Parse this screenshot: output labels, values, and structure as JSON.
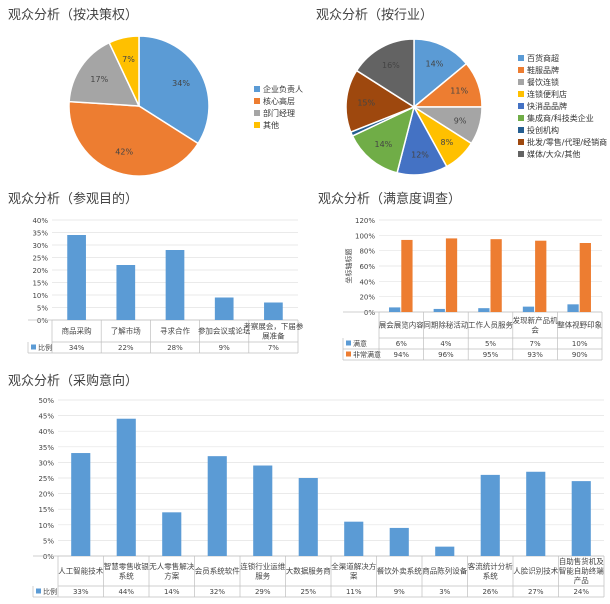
{
  "colors": {
    "blue": "#5B9BD5",
    "orange": "#ED7D31",
    "gray": "#A5A5A5",
    "yellow": "#FFC000",
    "darkblue": "#4472C4",
    "green": "#70AD47",
    "navy": "#255E91",
    "brown": "#9E480E",
    "darkgray": "#636363"
  },
  "charts": {
    "decision": {
      "title": "观众分析（按决策权）"
    },
    "industry": {
      "title": "观众分析（按行业）"
    },
    "purpose": {
      "title": "观众分析（参观目的）"
    },
    "satisfaction": {
      "title": "观众分析（满意度调查）",
      "ylabel": "坐标轴标题"
    },
    "procurement": {
      "title": "观众分析（采购意向）"
    }
  },
  "chart_data": [
    {
      "id": "decision",
      "type": "pie",
      "title": "观众分析（按决策权）",
      "slices": [
        {
          "label": "企业负责人",
          "value": 34,
          "data_label": "34%",
          "color": "#5B9BD5"
        },
        {
          "label": "核心高层",
          "value": 42,
          "data_label": "42%",
          "color": "#ED7D31"
        },
        {
          "label": "部门经理",
          "value": 17,
          "data_label": "17%",
          "color": "#A5A5A5"
        },
        {
          "label": "其他",
          "value": 7,
          "data_label": "7%",
          "color": "#FFC000"
        }
      ],
      "legend": "right"
    },
    {
      "id": "industry",
      "type": "pie",
      "title": "观众分析（按行业）",
      "slices": [
        {
          "label": "百货商超",
          "value": 14,
          "data_label": "14%",
          "color": "#5B9BD5"
        },
        {
          "label": "鞋服品牌",
          "value": 11,
          "data_label": "11%",
          "color": "#ED7D31"
        },
        {
          "label": "餐饮连锁",
          "value": 9,
          "data_label": "9%",
          "color": "#A5A5A5"
        },
        {
          "label": "连锁便利店",
          "value": 8,
          "data_label": "8%",
          "color": "#FFC000"
        },
        {
          "label": "快消品品牌",
          "value": 12,
          "data_label": "12%",
          "color": "#4472C4"
        },
        {
          "label": "集成商/科技类企业",
          "value": 14,
          "data_label": "14%",
          "color": "#70AD47"
        },
        {
          "label": "投创机构",
          "value": 1,
          "data_label": "",
          "color": "#255E91"
        },
        {
          "label": "批发/零售/代理/经销商",
          "value": 15,
          "data_label": "15%",
          "color": "#9E480E"
        },
        {
          "label": "媒体/大众/其他",
          "value": 16,
          "data_label": "16%",
          "color": "#636363"
        }
      ],
      "legend": "right"
    },
    {
      "id": "purpose",
      "type": "bar",
      "title": "观众分析（参观目的）",
      "categories": [
        "商品采购",
        "了解市场",
        "寻求合作",
        "参加会议或论坛",
        "考察展会，下届参展准备"
      ],
      "series": [
        {
          "name": "比例",
          "values": [
            34,
            22,
            28,
            9,
            7
          ],
          "labels": [
            "34%",
            "22%",
            "28%",
            "9%",
            "7%"
          ],
          "color": "#5B9BD5"
        }
      ],
      "ylim": [
        0,
        40
      ],
      "yticks": [
        "0%",
        "5%",
        "10%",
        "15%",
        "20%",
        "25%",
        "30%",
        "35%",
        "40%"
      ],
      "table": true
    },
    {
      "id": "satisfaction",
      "type": "bar",
      "title": "观众分析（满意度调查）",
      "ylabel": "坐标轴标题",
      "categories": [
        "展会展览内容",
        "同期除秘活动",
        "工作人员服务",
        "发现新产品机会",
        "整体视野印象"
      ],
      "series": [
        {
          "name": "满意",
          "values": [
            6,
            4,
            5,
            7,
            10
          ],
          "labels": [
            "6%",
            "4%",
            "5%",
            "7%",
            "10%"
          ],
          "color": "#5B9BD5"
        },
        {
          "name": "非常满意",
          "values": [
            94,
            96,
            95,
            93,
            90
          ],
          "labels": [
            "94%",
            "96%",
            "95%",
            "93%",
            "90%"
          ],
          "color": "#ED7D31"
        }
      ],
      "ylim": [
        0,
        120
      ],
      "yticks": [
        "0%",
        "20%",
        "40%",
        "60%",
        "80%",
        "100%",
        "120%"
      ],
      "table": true
    },
    {
      "id": "procurement",
      "type": "bar",
      "title": "观众分析（采购意向）",
      "categories": [
        "人工智能技术",
        "智慧零售收银系统",
        "无人零售解决方案",
        "会员系统软件",
        "连锁行业运维服务",
        "大数据服务商",
        "全渠道解决方案",
        "餐饮外卖系统",
        "商品陈列设备",
        "客流统计分析系统",
        "人脸识别技术",
        "自助售货机及智能自助终端产品"
      ],
      "series": [
        {
          "name": "比例",
          "values": [
            33,
            44,
            14,
            32,
            29,
            25,
            11,
            9,
            3,
            26,
            27,
            24
          ],
          "labels": [
            "33%",
            "44%",
            "14%",
            "32%",
            "29%",
            "25%",
            "11%",
            "9%",
            "3%",
            "26%",
            "27%",
            "24%"
          ],
          "color": "#5B9BD5"
        }
      ],
      "ylim": [
        0,
        50
      ],
      "yticks": [
        "0%",
        "5%",
        "10%",
        "15%",
        "20%",
        "25%",
        "30%",
        "35%",
        "40%",
        "45%",
        "50%"
      ],
      "table": true
    }
  ]
}
